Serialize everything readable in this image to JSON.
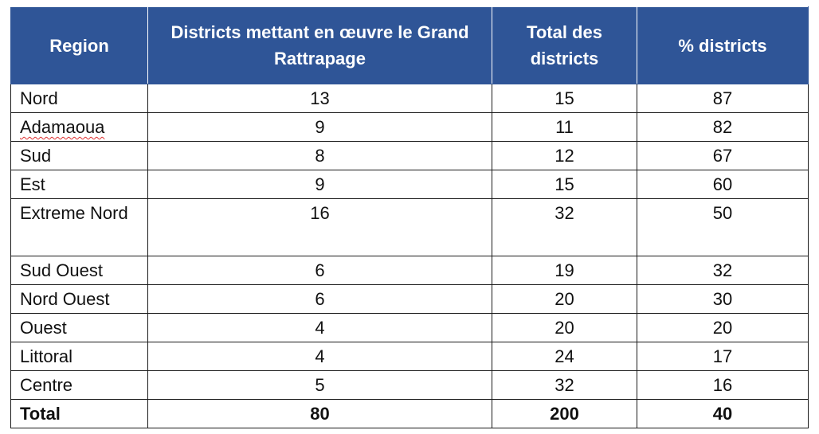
{
  "table": {
    "headers": [
      "Region",
      "Districts mettant en œuvre le Grand Rattrapage",
      "Total des districts",
      "% districts"
    ],
    "rows": [
      {
        "region": "Nord",
        "implementing": "13",
        "total": "15",
        "percent": "87"
      },
      {
        "region": "Adamaoua",
        "implementing": "9",
        "total": "11",
        "percent": "82"
      },
      {
        "region": "Sud",
        "implementing": "8",
        "total": "12",
        "percent": "67"
      },
      {
        "region": "Est",
        "implementing": "9",
        "total": "15",
        "percent": "60"
      },
      {
        "region": "Extreme Nord",
        "implementing": "16",
        "total": "32",
        "percent": "50"
      },
      {
        "region": "Sud Ouest",
        "implementing": "6",
        "total": "19",
        "percent": "32"
      },
      {
        "region": "Nord Ouest",
        "implementing": "6",
        "total": "20",
        "percent": "30"
      },
      {
        "region": "Ouest",
        "implementing": "4",
        "total": "20",
        "percent": "20"
      },
      {
        "region": "Littoral",
        "implementing": "4",
        "total": "24",
        "percent": "17"
      },
      {
        "region": "Centre",
        "implementing": "5",
        "total": "32",
        "percent": "16"
      }
    ],
    "total_row": {
      "region": "Total",
      "implementing": "80",
      "total": "200",
      "percent": "40"
    }
  },
  "colors": {
    "header_background": "#2f5597",
    "header_text": "#ffffff",
    "border": "#1a1a1a",
    "spellcheck_underline": "#e03030"
  }
}
